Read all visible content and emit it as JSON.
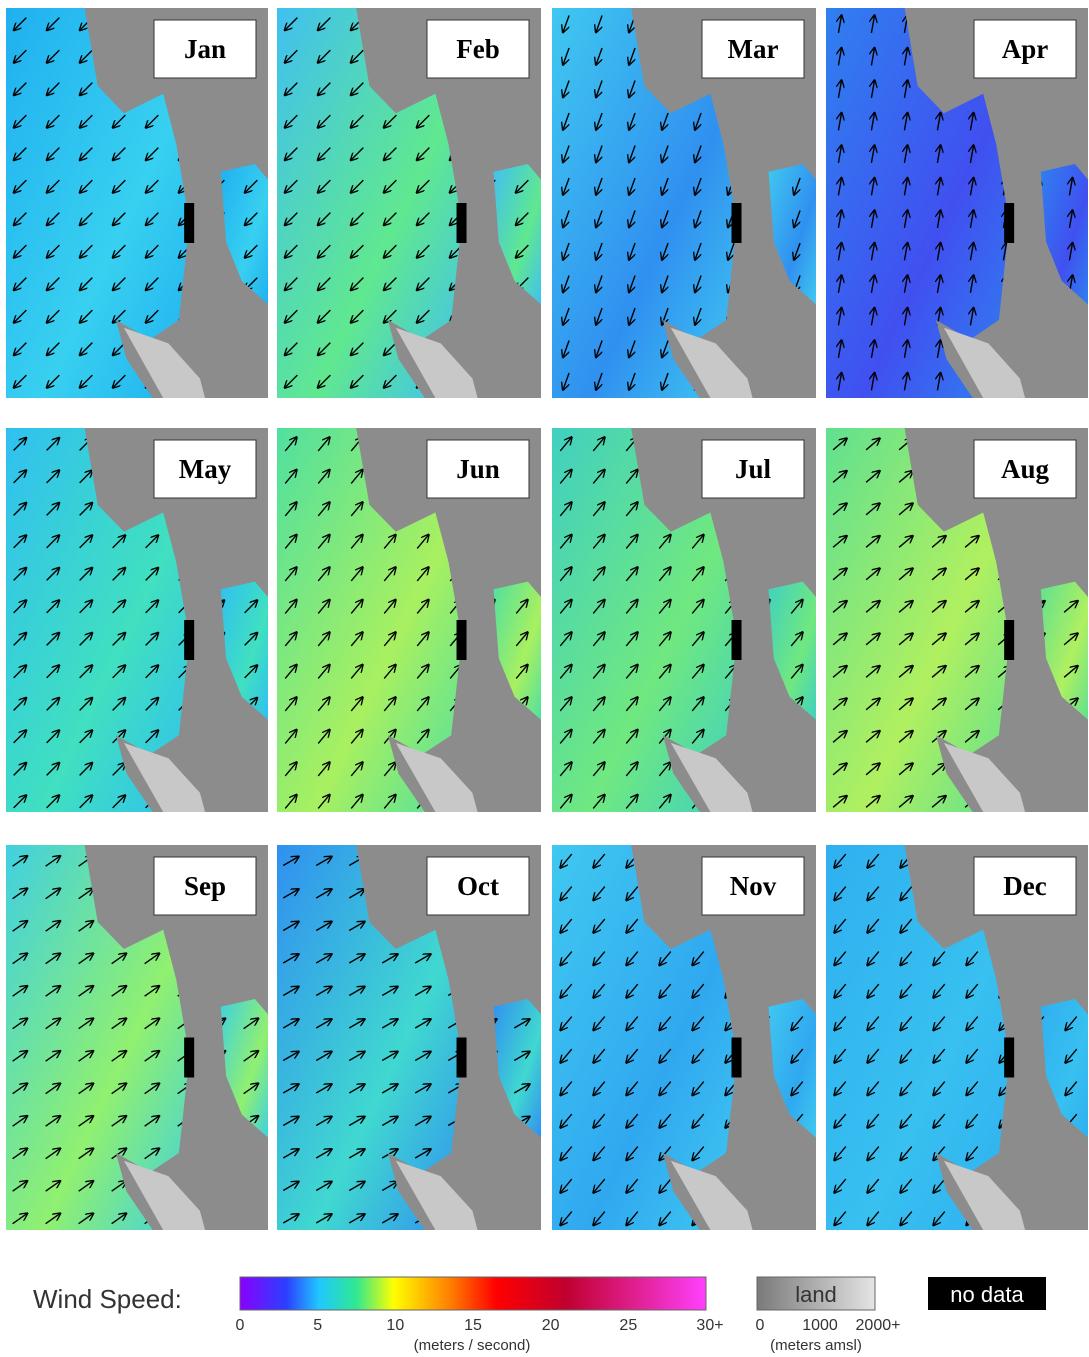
{
  "panels": [
    {
      "label": "Jan"
    },
    {
      "label": "Feb"
    },
    {
      "label": "Mar"
    },
    {
      "label": "Apr"
    },
    {
      "label": "May"
    },
    {
      "label": "Jun"
    },
    {
      "label": "Jul"
    },
    {
      "label": "Aug"
    },
    {
      "label": "Sep"
    },
    {
      "label": "Oct"
    },
    {
      "label": "Nov"
    },
    {
      "label": "Dec"
    }
  ],
  "legend": {
    "title": "Wind Speed:",
    "wind_ticks": [
      "0",
      "5",
      "10",
      "15",
      "20",
      "25",
      "30+"
    ],
    "wind_unit": "(meters / second)",
    "land_label": "land",
    "land_ticks": [
      "0",
      "1000",
      "2000+"
    ],
    "land_unit": "(meters amsl)",
    "no_data": "no data"
  }
}
